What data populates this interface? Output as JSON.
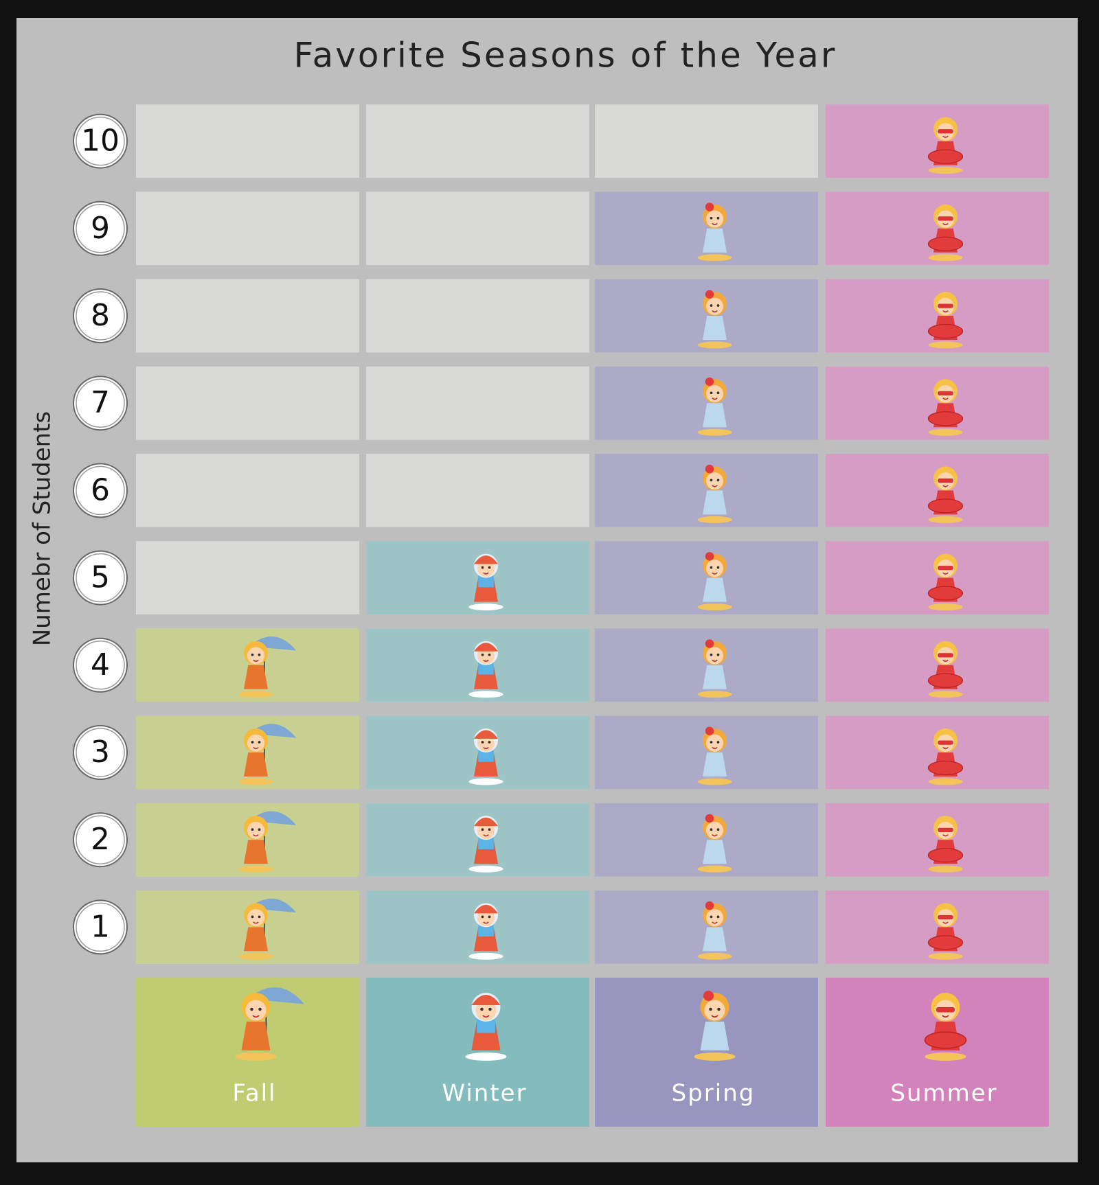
{
  "chart_data": {
    "type": "pictograph",
    "title": "Favorite Seasons of the Year",
    "y_label": "Numebr of Students",
    "categories": [
      "Fall",
      "Winter",
      "Spring",
      "Summer"
    ],
    "values": [
      4,
      5,
      9,
      10
    ],
    "colors": [
      "#bfcc72",
      "#84bcbe",
      "#9896bf",
      "#d383bb"
    ],
    "ylim": [
      0.5,
      10.5
    ],
    "yticks": [
      1,
      2,
      3,
      4,
      5,
      6,
      7,
      8,
      9,
      10
    ]
  }
}
